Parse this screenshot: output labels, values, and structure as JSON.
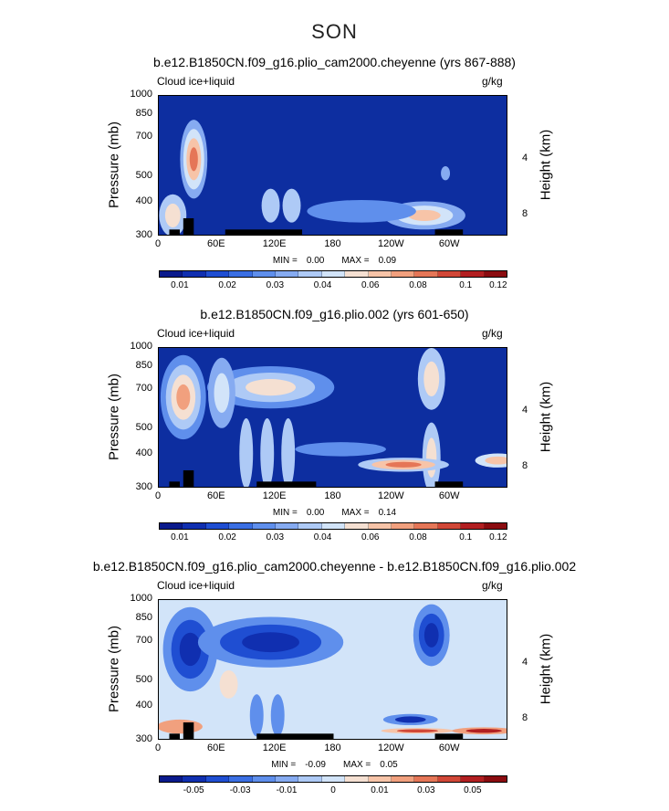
{
  "page": {
    "title": "SON"
  },
  "colors": {
    "dark_blue": "#0d2ea0",
    "palette": [
      "#0a1a8c",
      "#102fb0",
      "#1f4ed2",
      "#3b6fe3",
      "#5f8fec",
      "#86abf1",
      "#aecaf6",
      "#d2e4f9",
      "#f5e0d2",
      "#f7c4a8",
      "#f1a07e",
      "#e57657",
      "#d14737",
      "#b21f21",
      "#8b0c10"
    ]
  },
  "panels": [
    {
      "title": "b.e12.B1850CN.f09_g16.plio_cam2000.cheyenne (yrs 867-888)",
      "variable": "Cloud ice+liquid",
      "units": "g/kg",
      "ylabel": "Pressure (mb)",
      "ylabel_right": "Height (km)",
      "yticks": [
        "300",
        "400",
        "500",
        "700",
        "850",
        "1000"
      ],
      "rticks": [
        "8",
        "4"
      ],
      "xticks": [
        "0",
        "60E",
        "120E",
        "180",
        "120W",
        "60W"
      ],
      "min_label": "MIN =",
      "min_value": "0.00",
      "max_label": "MAX =",
      "max_value": "0.09",
      "colorbar_labels": [
        "0.01",
        "0.02",
        "0.03",
        "0.04",
        "0.06",
        "0.08",
        "0.1",
        "0.12"
      ]
    },
    {
      "title": "b.e12.B1850CN.f09_g16.plio.002 (yrs 601-650)",
      "variable": "Cloud ice+liquid",
      "units": "g/kg",
      "ylabel": "Pressure (mb)",
      "ylabel_right": "Height (km)",
      "yticks": [
        "300",
        "400",
        "500",
        "700",
        "850",
        "1000"
      ],
      "rticks": [
        "8",
        "4"
      ],
      "xticks": [
        "0",
        "60E",
        "120E",
        "180",
        "120W",
        "60W"
      ],
      "min_label": "MIN =",
      "min_value": "0.00",
      "max_label": "MAX =",
      "max_value": "0.14",
      "colorbar_labels": [
        "0.01",
        "0.02",
        "0.03",
        "0.04",
        "0.06",
        "0.08",
        "0.1",
        "0.12"
      ]
    },
    {
      "title": "b.e12.B1850CN.f09_g16.plio_cam2000.cheyenne - b.e12.B1850CN.f09_g16.plio.002",
      "variable": "Cloud ice+liquid",
      "units": "g/kg",
      "ylabel": "Pressure (mb)",
      "ylabel_right": "Height (km)",
      "yticks": [
        "300",
        "400",
        "500",
        "700",
        "850",
        "1000"
      ],
      "rticks": [
        "8",
        "4"
      ],
      "xticks": [
        "0",
        "60E",
        "120E",
        "180",
        "120W",
        "60W"
      ],
      "min_label": "MIN =",
      "min_value": "-0.09",
      "max_label": "MAX =",
      "max_value": "0.05",
      "colorbar_labels": [
        "-0.05",
        "-0.03",
        "-0.01",
        "0",
        "0.01",
        "0.03",
        "0.05"
      ]
    }
  ],
  "chart_data": [
    {
      "type": "heatmap",
      "title": "b.e12.B1850CN.f09_g16.plio_cam2000.cheyenne (yrs 867-888)",
      "xlabel": "",
      "ylabel": "Pressure (mb)",
      "x_ticks": [
        "0",
        "60E",
        "120E",
        "180",
        "120W",
        "60W"
      ],
      "y_ticks": [
        300,
        400,
        500,
        700,
        850,
        1000
      ],
      "ylim": [
        1000,
        300
      ],
      "min": 0.0,
      "max": 0.09,
      "contour_levels": [
        0.01,
        0.02,
        0.03,
        0.04,
        0.06,
        0.08,
        0.1,
        0.12
      ]
    },
    {
      "type": "heatmap",
      "title": "b.e12.B1850CN.f09_g16.plio.002 (yrs 601-650)",
      "xlabel": "",
      "ylabel": "Pressure (mb)",
      "x_ticks": [
        "0",
        "60E",
        "120E",
        "180",
        "120W",
        "60W"
      ],
      "y_ticks": [
        300,
        400,
        500,
        700,
        850,
        1000
      ],
      "ylim": [
        1000,
        300
      ],
      "min": 0.0,
      "max": 0.14,
      "contour_levels": [
        0.01,
        0.02,
        0.03,
        0.04,
        0.06,
        0.08,
        0.1,
        0.12
      ]
    },
    {
      "type": "heatmap",
      "title": "b.e12.B1850CN.f09_g16.plio_cam2000.cheyenne - b.e12.B1850CN.f09_g16.plio.002",
      "xlabel": "",
      "ylabel": "Pressure (mb)",
      "x_ticks": [
        "0",
        "60E",
        "120E",
        "180",
        "120W",
        "60W"
      ],
      "y_ticks": [
        300,
        400,
        500,
        700,
        850,
        1000
      ],
      "ylim": [
        1000,
        300
      ],
      "min": -0.09,
      "max": 0.05,
      "contour_levels": [
        -0.05,
        -0.03,
        -0.01,
        0,
        0.01,
        0.03,
        0.05
      ]
    }
  ]
}
